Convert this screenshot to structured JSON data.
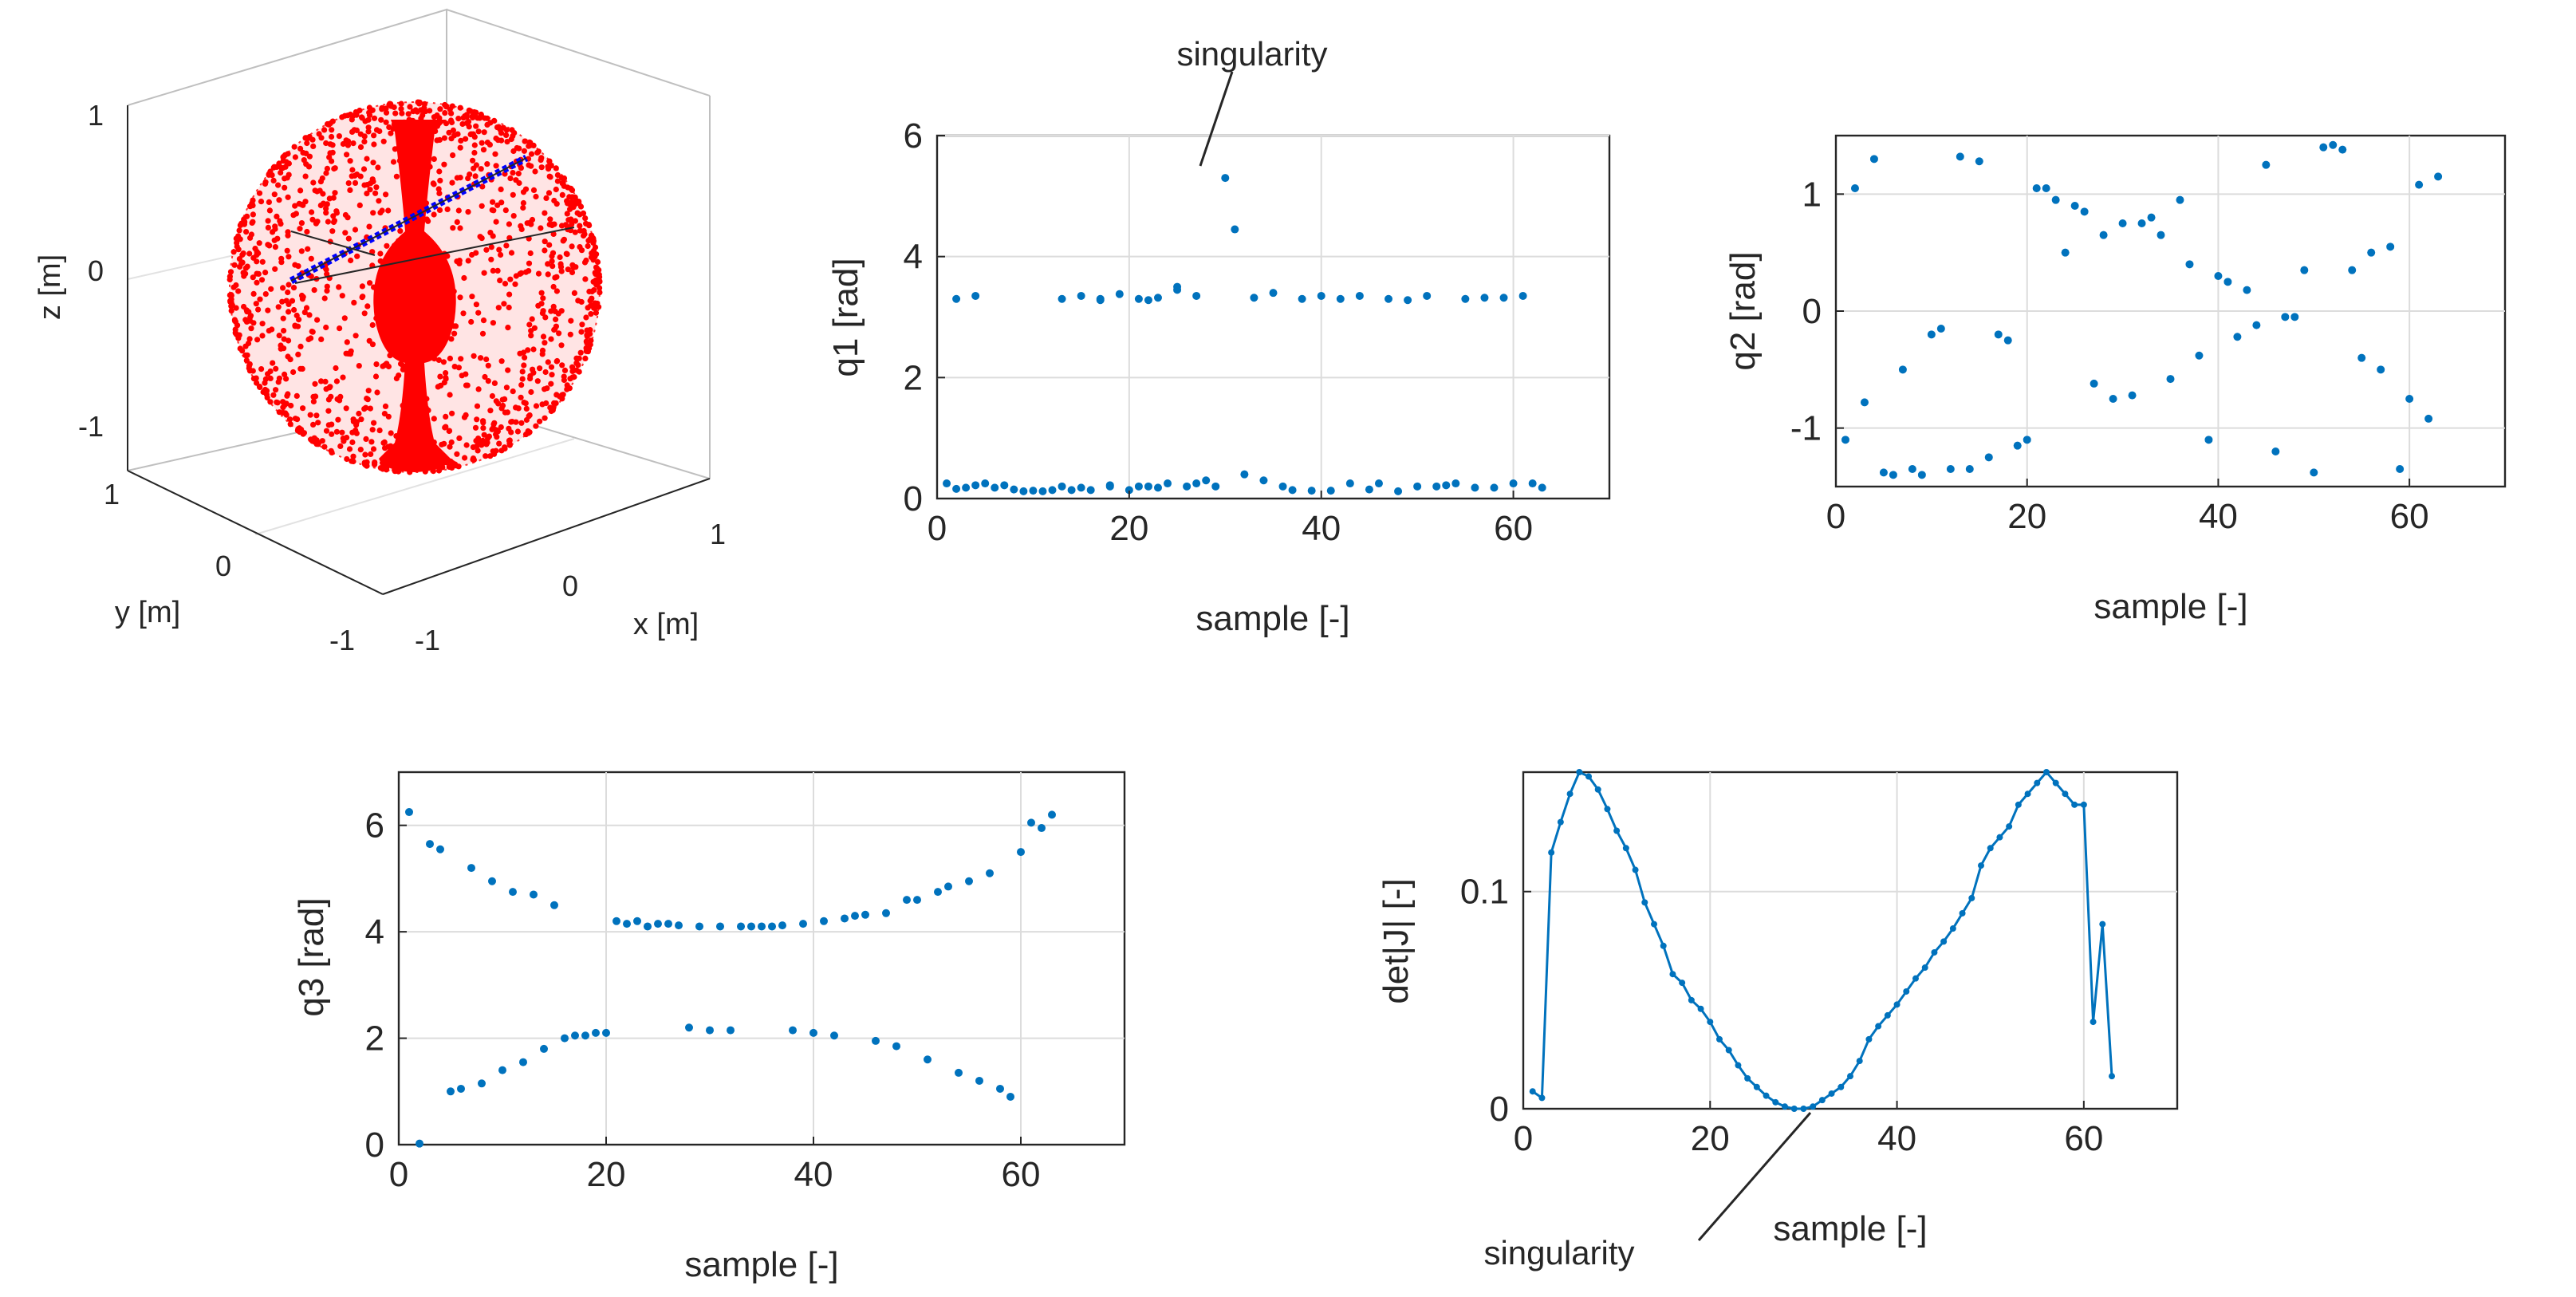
{
  "colors": {
    "series": "#0072BD",
    "sphere": "#ff0000",
    "axis": "#262626",
    "grid": "#dcdcdc",
    "path": "#0000ff"
  },
  "chart_data": [
    {
      "id": "workspace",
      "type": "scatter3d",
      "xlabel": "x [m]",
      "ylabel": "y [m]",
      "zlabel": "z [m]",
      "xticks": [
        "-1",
        "0",
        "1"
      ],
      "yticks": [
        "-1",
        "0",
        "1"
      ],
      "zticks": [
        "-1",
        "0",
        "1"
      ],
      "xlim": [
        -1,
        1
      ],
      "ylim": [
        -1,
        1
      ],
      "zlim": [
        -1,
        1
      ]
    },
    {
      "id": "q1",
      "type": "scatter",
      "xlabel": "sample [-]",
      "ylabel": "q1 [rad]",
      "xlim": [
        0,
        70
      ],
      "ylim": [
        0,
        6
      ],
      "xticks": [
        0,
        20,
        40,
        60
      ],
      "yticks": [
        0,
        2,
        4,
        6
      ],
      "annotation": {
        "text": "singularity",
        "x": 30,
        "y": 5.3
      },
      "x": [
        1,
        2,
        3,
        4,
        5,
        6,
        7,
        8,
        9,
        10,
        11,
        12,
        13,
        14,
        15,
        16,
        17,
        18,
        19,
        20,
        21,
        22,
        23,
        24,
        25,
        26,
        27,
        28,
        29,
        30,
        31,
        32,
        33,
        34,
        35,
        36,
        37,
        38,
        39,
        40,
        41,
        42,
        43,
        44,
        45,
        46,
        47,
        48,
        49,
        50,
        51,
        52,
        53,
        54,
        55,
        56,
        57,
        58,
        59,
        60,
        61,
        62,
        63,
        2,
        4,
        13,
        15,
        17,
        18,
        21,
        22,
        23,
        25,
        27
      ],
      "y": [
        0.25,
        3.3,
        0.18,
        3.35,
        0.25,
        0.18,
        0.22,
        0.15,
        0.12,
        0.13,
        0.12,
        0.14,
        3.3,
        0.14,
        3.35,
        0.14,
        3.28,
        0.2,
        3.38,
        0.14,
        3.3,
        0.2,
        3.32,
        0.25,
        3.5,
        0.2,
        3.35,
        0.3,
        0.2,
        5.3,
        4.45,
        0.4,
        3.32,
        0.3,
        3.4,
        0.2,
        0.14,
        3.3,
        0.13,
        3.35,
        0.13,
        3.3,
        0.25,
        3.35,
        0.15,
        0.25,
        3.3,
        0.12,
        3.28,
        0.2,
        3.35,
        0.2,
        0.22,
        0.25,
        3.3,
        0.18,
        3.32,
        0.18,
        3.32,
        0.25,
        3.35,
        0.25,
        0.18,
        0.16,
        0.22,
        0.2,
        0.18,
        3.3,
        0.22,
        0.2,
        3.28,
        0.18,
        3.45,
        0.25
      ]
    },
    {
      "id": "q2",
      "type": "scatter",
      "xlabel": "sample [-]",
      "ylabel": "q2 [rad]",
      "xlim": [
        0,
        70
      ],
      "ylim": [
        -1.5,
        1.5
      ],
      "xticks": [
        0,
        20,
        40,
        60
      ],
      "yticks": [
        -1,
        0,
        1
      ],
      "x": [
        1,
        2,
        3,
        4,
        5,
        6,
        7,
        8,
        9,
        10,
        11,
        12,
        13,
        14,
        15,
        16,
        17,
        18,
        19,
        20,
        21,
        22,
        23,
        24,
        25,
        26,
        27,
        28,
        29,
        30,
        31,
        32,
        33,
        34,
        35,
        36,
        37,
        38,
        39,
        40,
        41,
        42,
        43,
        44,
        45,
        46,
        47,
        48,
        49,
        50,
        51,
        52,
        53,
        54,
        55,
        56,
        57,
        58,
        59,
        60,
        61,
        62,
        63
      ],
      "y": [
        -1.1,
        1.05,
        -0.78,
        1.3,
        -1.38,
        -1.4,
        -0.5,
        -1.35,
        -1.4,
        -0.2,
        -0.15,
        -1.35,
        1.32,
        -1.35,
        1.28,
        -1.25,
        -0.2,
        -0.25,
        -1.15,
        -1.1,
        1.05,
        1.05,
        0.95,
        0.5,
        0.9,
        0.85,
        -0.62,
        0.65,
        -0.75,
        0.75,
        -0.72,
        0.75,
        0.8,
        0.65,
        -0.58,
        0.95,
        0.4,
        -0.38,
        -1.1,
        0.3,
        0.25,
        -0.22,
        0.18,
        -0.12,
        1.25,
        -1.2,
        -0.05,
        -0.05,
        0.35,
        -1.38,
        1.4,
        1.42,
        1.38,
        0.35,
        -0.4,
        0.5,
        -0.5,
        0.55,
        -1.35,
        -0.75,
        1.08,
        -0.92,
        1.15
      ]
    },
    {
      "id": "q3",
      "type": "scatter",
      "xlabel": "sample [-]",
      "ylabel": "q3 [rad]",
      "xlim": [
        0,
        70
      ],
      "ylim": [
        0,
        7
      ],
      "xticks": [
        0,
        20,
        40,
        60
      ],
      "yticks": [
        0,
        2,
        4,
        6
      ],
      "x": [
        1,
        2,
        3,
        4,
        5,
        6,
        7,
        8,
        9,
        10,
        11,
        12,
        13,
        14,
        15,
        16,
        17,
        18,
        19,
        20,
        21,
        22,
        23,
        24,
        25,
        26,
        27,
        28,
        29,
        30,
        31,
        32,
        33,
        34,
        35,
        36,
        37,
        38,
        39,
        40,
        41,
        42,
        43,
        44,
        45,
        46,
        47,
        48,
        49,
        50,
        51,
        52,
        53,
        54,
        55,
        56,
        57,
        58,
        59,
        60,
        61,
        62,
        63
      ],
      "y": [
        6.25,
        0.02,
        5.65,
        5.55,
        1.0,
        1.05,
        5.2,
        1.15,
        4.95,
        1.4,
        4.75,
        1.55,
        4.7,
        1.8,
        4.5,
        2.0,
        2.05,
        2.05,
        2.1,
        2.1,
        4.2,
        4.15,
        4.2,
        4.1,
        4.15,
        4.15,
        4.12,
        2.2,
        4.1,
        2.15,
        4.1,
        2.15,
        4.1,
        4.1,
        4.1,
        4.1,
        4.12,
        2.15,
        4.15,
        2.1,
        4.2,
        2.05,
        4.25,
        4.3,
        4.32,
        1.95,
        4.35,
        1.85,
        4.6,
        4.6,
        1.6,
        4.75,
        4.85,
        1.35,
        4.95,
        1.2,
        5.1,
        1.05,
        0.9,
        5.5,
        6.05,
        5.95,
        6.2
      ]
    },
    {
      "id": "detJ",
      "type": "line",
      "xlabel": "sample [-]",
      "ylabel": "det|J| [-]",
      "xlim": [
        0,
        70
      ],
      "ylim": [
        0,
        0.155
      ],
      "xticks": [
        0,
        20,
        40,
        60
      ],
      "ytick_values": [
        0,
        0.1
      ],
      "ytick_labels": [
        "0",
        "0.1"
      ],
      "annotation": {
        "text": "singularity",
        "x": 31,
        "y": 0
      },
      "x": [
        1,
        2,
        3,
        4,
        5,
        6,
        7,
        8,
        9,
        10,
        11,
        12,
        13,
        14,
        15,
        16,
        17,
        18,
        19,
        20,
        21,
        22,
        23,
        24,
        25,
        26,
        27,
        28,
        29,
        30,
        31,
        32,
        33,
        34,
        35,
        36,
        37,
        38,
        39,
        40,
        41,
        42,
        43,
        44,
        45,
        46,
        47,
        48,
        49,
        50,
        51,
        52,
        53,
        54,
        55,
        56,
        57,
        58,
        59,
        60,
        61,
        62,
        63
      ],
      "y": [
        0.008,
        0.005,
        0.118,
        0.132,
        0.145,
        0.155,
        0.153,
        0.147,
        0.138,
        0.128,
        0.12,
        0.11,
        0.095,
        0.085,
        0.075,
        0.062,
        0.058,
        0.05,
        0.046,
        0.04,
        0.032,
        0.027,
        0.02,
        0.014,
        0.01,
        0.006,
        0.003,
        0.001,
        0.0,
        0.0,
        0.001,
        0.004,
        0.007,
        0.01,
        0.015,
        0.022,
        0.032,
        0.038,
        0.043,
        0.048,
        0.054,
        0.06,
        0.065,
        0.072,
        0.077,
        0.083,
        0.09,
        0.097,
        0.112,
        0.12,
        0.125,
        0.13,
        0.14,
        0.145,
        0.15,
        0.155,
        0.15,
        0.145,
        0.14,
        0.14,
        0.04,
        0.085,
        0.015
      ]
    }
  ]
}
